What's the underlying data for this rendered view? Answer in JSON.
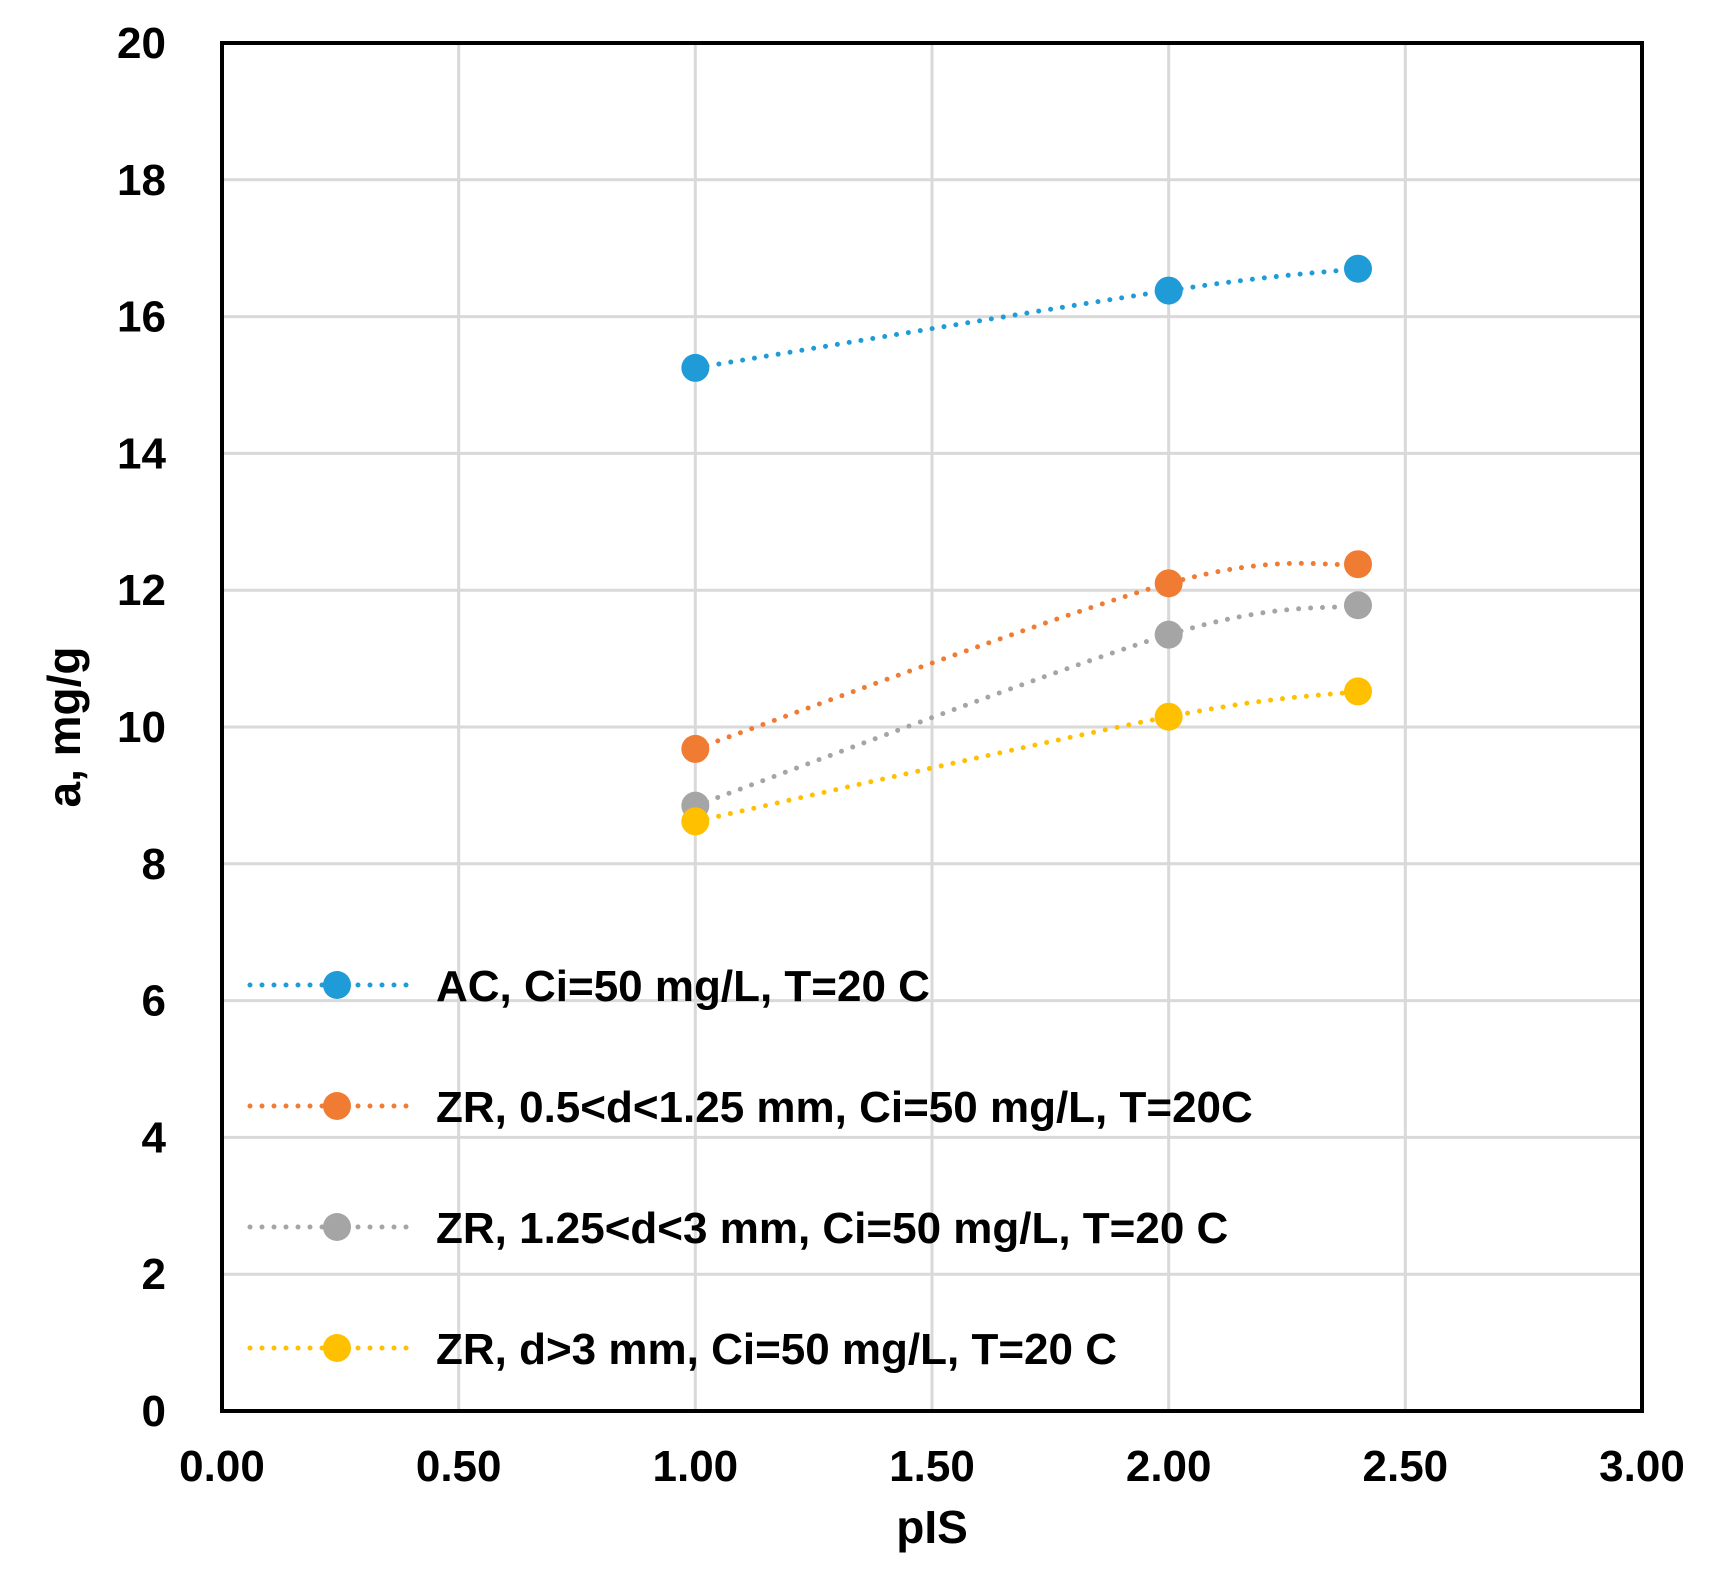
{
  "chart_data": {
    "type": "line",
    "title": "",
    "xlabel": "pIS",
    "ylabel": "a, mg/g",
    "xlim": [
      0,
      3
    ],
    "ylim": [
      0,
      20
    ],
    "x_ticks": [
      "0.00",
      "0.50",
      "1.00",
      "1.50",
      "2.00",
      "2.50",
      "3.00"
    ],
    "y_ticks": [
      "0",
      "2",
      "4",
      "6",
      "8",
      "10",
      "12",
      "14",
      "16",
      "18",
      "20"
    ],
    "grid": true,
    "legend_position": "bottom-left",
    "series": [
      {
        "name": "AC, Ci=50 mg/L, T=20 C",
        "color": "#1f9bd7",
        "x": [
          1.0,
          2.0,
          2.4
        ],
        "y": [
          15.25,
          16.38,
          16.7
        ]
      },
      {
        "name": "ZR, 0.5<d<1.25 mm, Ci=50 mg/L, T=20C",
        "color": "#f07b33",
        "x": [
          1.0,
          2.0,
          2.4
        ],
        "y": [
          9.68,
          12.1,
          12.38
        ]
      },
      {
        "name": "ZR, 1.25<d<3 mm, Ci=50 mg/L, T=20 C",
        "color": "#a5a5a5",
        "x": [
          1.0,
          2.0,
          2.4
        ],
        "y": [
          8.85,
          11.35,
          11.78
        ]
      },
      {
        "name": "ZR, d>3 mm, Ci=50 mg/L, T=20 C",
        "color": "#ffc000",
        "x": [
          1.0,
          2.0,
          2.4
        ],
        "y": [
          8.62,
          10.15,
          10.52
        ]
      }
    ]
  }
}
